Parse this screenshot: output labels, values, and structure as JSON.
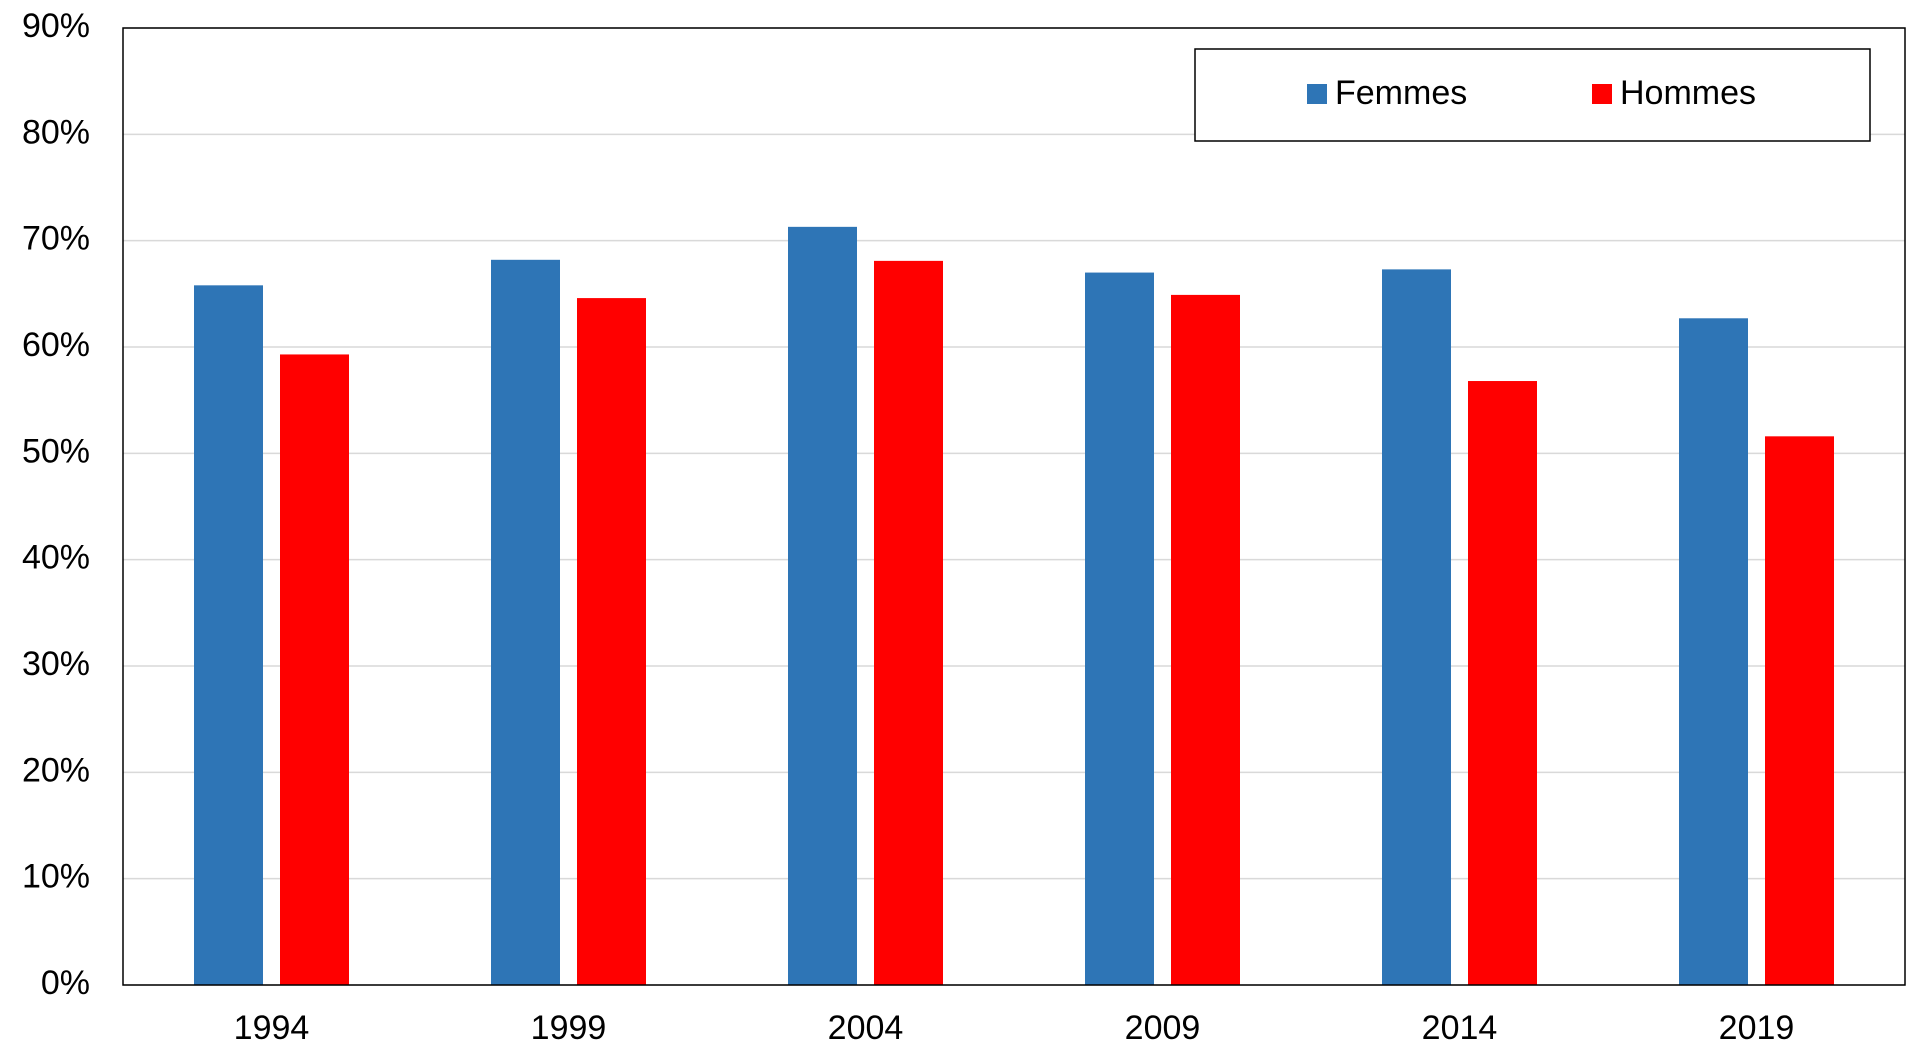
{
  "chart_data": {
    "type": "bar",
    "categories": [
      "1994",
      "1999",
      "2004",
      "2009",
      "2014",
      "2019"
    ],
    "series": [
      {
        "name": "Femmes",
        "color": "#2e75b6",
        "values": [
          65.8,
          68.2,
          71.3,
          67.0,
          67.3,
          62.7
        ]
      },
      {
        "name": "Hommes",
        "color": "#ff0000",
        "values": [
          59.3,
          64.6,
          68.1,
          64.9,
          56.8,
          51.6
        ]
      }
    ],
    "ylim": [
      0,
      90
    ],
    "yticks": [
      {
        "value": 0,
        "label": "0%"
      },
      {
        "value": 10,
        "label": "10%"
      },
      {
        "value": 20,
        "label": "20%"
      },
      {
        "value": 30,
        "label": "30%"
      },
      {
        "value": 40,
        "label": "40%"
      },
      {
        "value": 50,
        "label": "50%"
      },
      {
        "value": 60,
        "label": "60%"
      },
      {
        "value": 70,
        "label": "70%"
      },
      {
        "value": 80,
        "label": "80%"
      },
      {
        "value": 90,
        "label": "90%"
      }
    ],
    "grid": true,
    "legend": "top-right"
  }
}
